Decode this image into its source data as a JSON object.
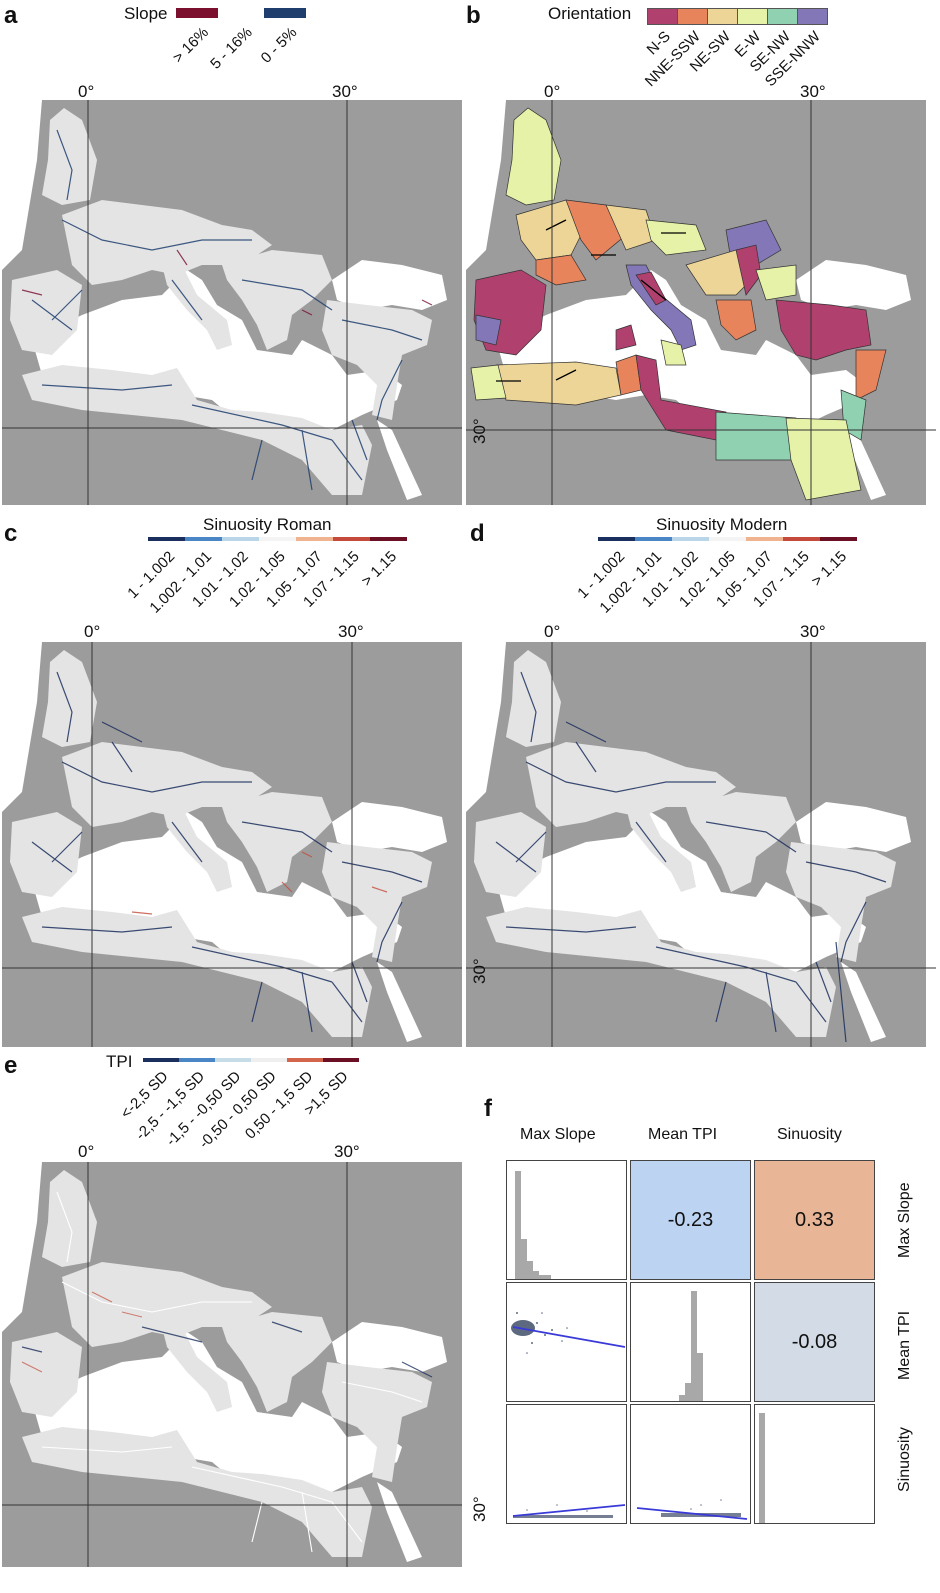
{
  "panels": {
    "a": {
      "label": "a",
      "legend_title": "Slope",
      "legend": [
        {
          "label": "> 16%",
          "color": "#7a0f2e"
        },
        {
          "label": "5 - 16%",
          "color": "#ffffff"
        },
        {
          "label": "0 - 5%",
          "color": "#1f3e6e"
        }
      ],
      "longitudes": [
        "0°",
        "30°"
      ],
      "latitude": ""
    },
    "b": {
      "label": "b",
      "legend_title": "Orientation",
      "legend": [
        {
          "label": "N-S",
          "color": "#b0406e"
        },
        {
          "label": "NNE-SSW",
          "color": "#e8845c"
        },
        {
          "label": "NE-SW",
          "color": "#ecd596"
        },
        {
          "label": "E-W",
          "color": "#e6f2a8"
        },
        {
          "label": "SE-NW",
          "color": "#8fd1b1"
        },
        {
          "label": "SSE-NNW",
          "color": "#8377b8"
        }
      ],
      "longitudes": [
        "0°",
        "30°"
      ],
      "latitude": "30°"
    },
    "c": {
      "label": "c",
      "legend_title": "Sinuosity Roman",
      "legend": [
        {
          "label": "1 - 1.002",
          "color": "#1b2f5e"
        },
        {
          "label": "1.002 - 1.01",
          "color": "#4a86c5"
        },
        {
          "label": "1.01 - 1.02",
          "color": "#b9d6e8"
        },
        {
          "label": "1.02 - 1.05",
          "color": "#f4f4f4"
        },
        {
          "label": "1.05 - 1.07",
          "color": "#f0b38f"
        },
        {
          "label": "1.07 - 1.15",
          "color": "#c44b3c"
        },
        {
          "label": "> 1.15",
          "color": "#6b0f24"
        }
      ],
      "longitudes": [
        "0°",
        "30°"
      ],
      "latitude": ""
    },
    "d": {
      "label": "d",
      "legend_title": "Sinuosity Modern",
      "legend": [
        {
          "label": "1 - 1.002",
          "color": "#1b2f5e"
        },
        {
          "label": "1.002 - 1.01",
          "color": "#4a86c5"
        },
        {
          "label": "1.01 - 1.02",
          "color": "#b9d6e8"
        },
        {
          "label": "1.02 - 1.05",
          "color": "#f4f4f4"
        },
        {
          "label": "1.05 - 1.07",
          "color": "#f0b38f"
        },
        {
          "label": "1.07 - 1.15",
          "color": "#c44b3c"
        },
        {
          "label": "> 1.15",
          "color": "#6b0f24"
        }
      ],
      "longitudes": [
        "0°",
        "30°"
      ],
      "latitude": "30°"
    },
    "e": {
      "label": "e",
      "legend_title": "TPI",
      "legend": [
        {
          "label": "<-2,5 SD",
          "color": "#1b2f5e"
        },
        {
          "label": "-2,5 - -1,5 SD",
          "color": "#4a86c5"
        },
        {
          "label": "-1,5 - -0,50 SD",
          "color": "#c6dde8"
        },
        {
          "label": "-0,50 - 0,50 SD",
          "color": "#efefef"
        },
        {
          "label": "0,50 - 1,5 SD",
          "color": "#d2654c"
        },
        {
          "label": ">1,5 SD",
          "color": "#6b0f24"
        }
      ],
      "longitudes": [
        "0°",
        "30°"
      ],
      "latitude": "30°"
    },
    "f": {
      "label": "f",
      "columns": [
        "Max Slope",
        "Mean TPI",
        "Sinuosity"
      ],
      "rows": [
        "Max Slope",
        "Mean TPI",
        "Sinuosity"
      ],
      "correlations": [
        {
          "pair": "Max Slope / Mean TPI",
          "value": "-0.23",
          "color": "#bcd3f2"
        },
        {
          "pair": "Max Slope / Sinuosity",
          "value": "0.33",
          "color": "#e8b596"
        },
        {
          "pair": "Mean TPI / Sinuosity",
          "value": "-0.08",
          "color": "#d2dbe6"
        }
      ]
    }
  },
  "colors": {
    "land_bg": "#9c9c9c",
    "empire": "#e4e4e4",
    "sea": "#ffffff",
    "grid": "#333333",
    "regression": "#3a3ad9"
  }
}
